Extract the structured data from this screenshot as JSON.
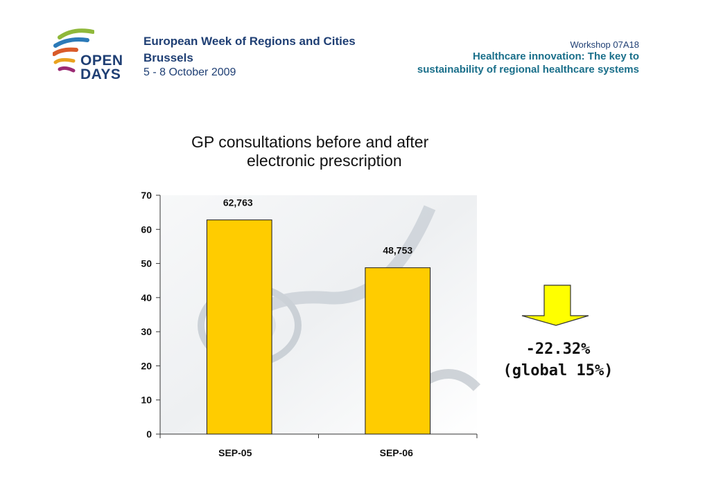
{
  "header": {
    "logo": {
      "line1": "European Week of Regions and Cities",
      "city": "Brussels",
      "dates": "5 - 8 October 2009",
      "word_open": "OPEN",
      "word_days": "DAYS"
    },
    "workshop_code": "Workshop 07A18",
    "workshop_title_line1": "Healthcare innovation: The key to",
    "workshop_title_line2": "sustainability of regional healthcare systems"
  },
  "colors": {
    "bar": "#ffcc00",
    "bar_border": "#1a1a1a",
    "arrow": "#ffff00",
    "brand": "#1f3f74",
    "accent": "#1a6f8a"
  },
  "chart_data": {
    "type": "bar",
    "title_line1": "GP consultations before and after",
    "title_line2": "electronic prescription",
    "categories": [
      "SEP-05",
      "SEP-06"
    ],
    "values": [
      62.763,
      48.753
    ],
    "data_labels": [
      "62,763",
      "48,753"
    ],
    "ylim": [
      0,
      70
    ],
    "yticks": [
      0,
      10,
      20,
      30,
      40,
      50,
      60,
      70
    ],
    "xlabel": "",
    "ylabel": "",
    "grid": false
  },
  "result": {
    "change": "-22.32%",
    "global": "(global 15%)"
  }
}
